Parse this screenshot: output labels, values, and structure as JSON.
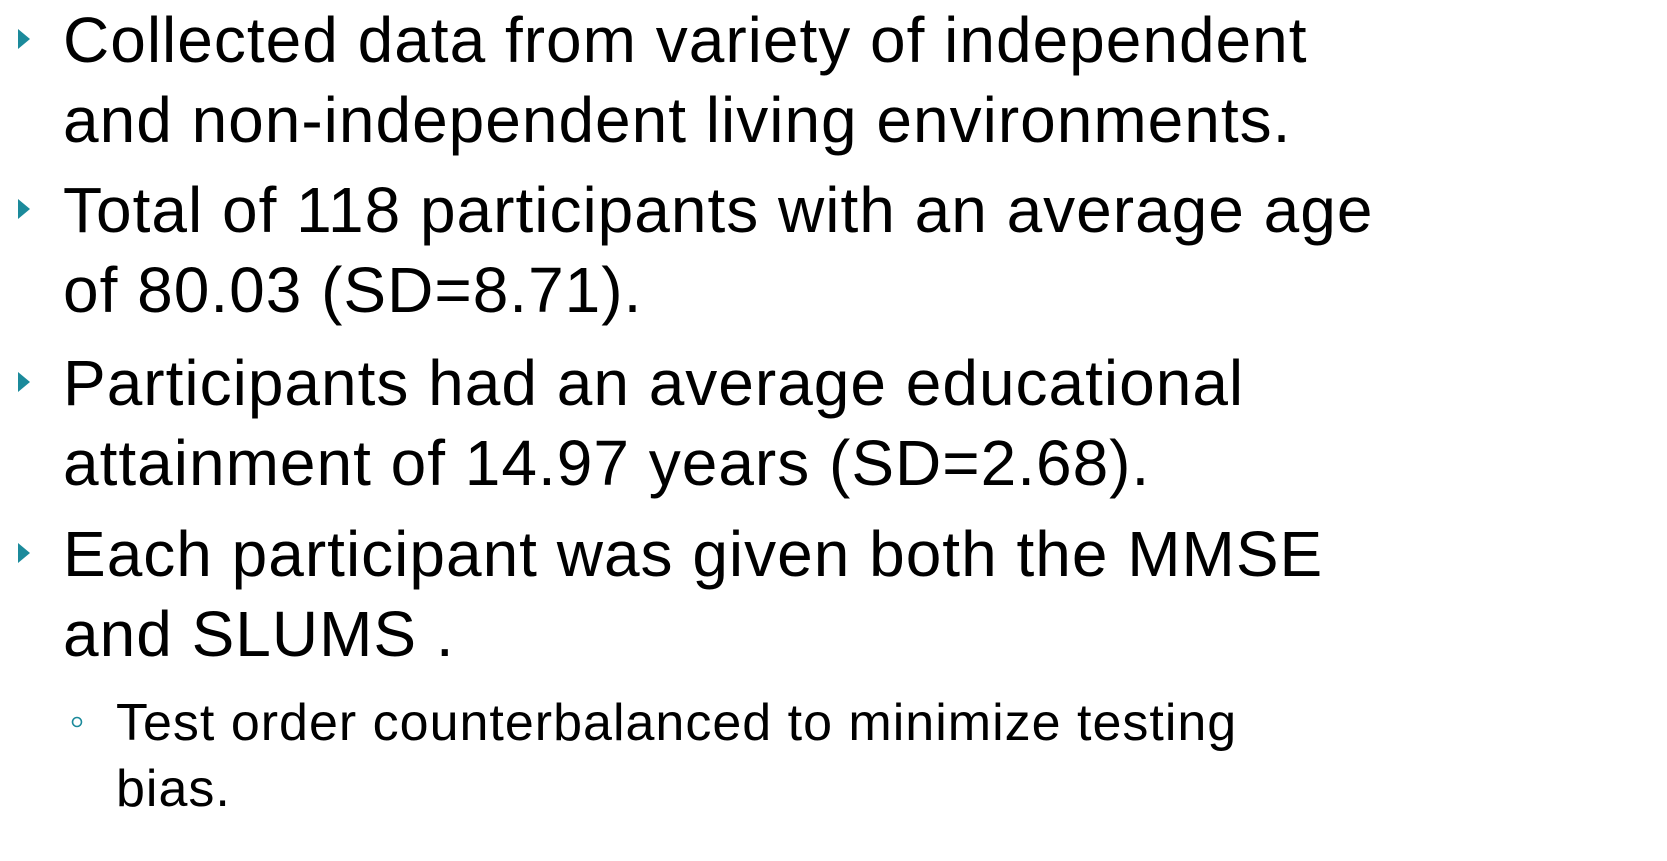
{
  "bullets": [
    {
      "lines": [
        "Collected data from variety of independent",
        "and non-independent living environments."
      ]
    },
    {
      "lines": [
        "Total of 118 participants with an average age",
        "of 80.03 (SD=8.71)."
      ]
    },
    {
      "lines": [
        "Participants had an average educational",
        "attainment of 14.97 years (SD=2.68)."
      ]
    },
    {
      "lines": [
        "Each participant was given both the MMSE",
        "and SLUMS ."
      ],
      "sub_bullets": [
        {
          "lines": [
            "Test order counterbalanced to minimize testing",
            "bias."
          ]
        }
      ]
    }
  ]
}
